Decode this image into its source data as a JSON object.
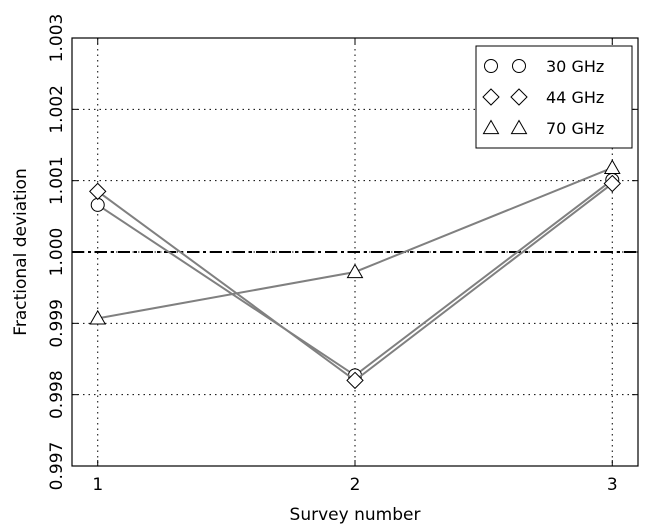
{
  "chart_data": {
    "type": "line",
    "title": "",
    "xlabel": "Survey number",
    "ylabel": "Fractional deviation",
    "x": [
      1,
      2,
      3
    ],
    "xlim": [
      0.9,
      3.1
    ],
    "ylim": [
      0.997,
      1.003
    ],
    "x_ticks": [
      "1",
      "2",
      "3"
    ],
    "y_ticks": [
      "0.997",
      "0.998",
      "0.999",
      "1.000",
      "1.001",
      "1.002",
      "1.003"
    ],
    "reference_line": 1.0,
    "grid": true,
    "legend_position": "top-right",
    "series": [
      {
        "name": "30 GHz",
        "marker": "circle",
        "values": [
          1.00066,
          0.99827,
          1.00101
        ]
      },
      {
        "name": "44 GHz",
        "marker": "diamond",
        "values": [
          1.00085,
          0.9982,
          1.00096
        ]
      },
      {
        "name": "70 GHz",
        "marker": "triangle",
        "values": [
          0.99907,
          0.99972,
          1.00118
        ]
      }
    ],
    "colors": {
      "line": "#808080",
      "marker": "#000000",
      "grid": "#000000",
      "reference": "#000000"
    }
  }
}
